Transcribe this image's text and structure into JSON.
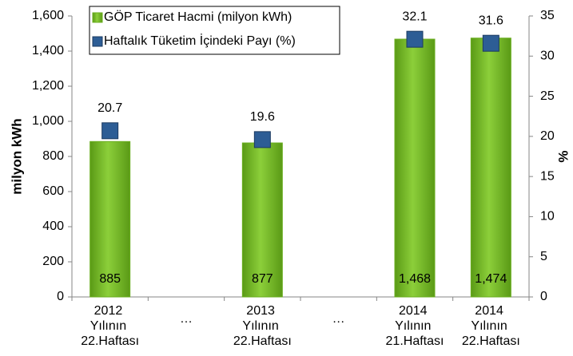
{
  "chart_data": {
    "type": "bar_marker",
    "y_label": "milyon kWh",
    "y2_label": "%",
    "categories": [
      "2012 Yılının 22.Haftası",
      "…",
      "2013 Yılının 22.Haftası",
      "…",
      "2014 Yılının 21.Haftası",
      "2014 Yılının 22.Haftası"
    ],
    "series": [
      {
        "name": "GÖP Ticaret Hacmi (milyon kWh)",
        "color": "#6aae1f",
        "values": [
          885,
          null,
          877,
          null,
          1468,
          1474
        ],
        "value_labels": [
          "885",
          null,
          "877",
          null,
          "1,468",
          "1,474"
        ]
      },
      {
        "name": "Haftalık Tüketim İçindeki Payı (%)",
        "color": "#2d5d95",
        "axis": "y2",
        "values": [
          20.7,
          null,
          19.6,
          null,
          32.1,
          31.6
        ]
      }
    ],
    "ylim": [
      0,
      1600
    ],
    "yticks": [
      0,
      200,
      400,
      600,
      800,
      {
        "value": 1000,
        "label": "1,000"
      },
      {
        "value": 1200,
        "label": "1,200"
      },
      {
        "value": 1400,
        "label": "1,400"
      },
      {
        "value": 1600,
        "label": "1,600"
      }
    ],
    "y2lim": [
      0,
      35
    ],
    "y2ticks": [
      0,
      5,
      10,
      15,
      20,
      25,
      30,
      35
    ]
  }
}
